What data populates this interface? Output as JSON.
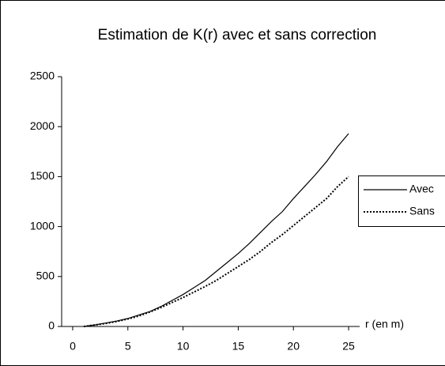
{
  "chart_data": {
    "type": "line",
    "title": "Estimation de K(r) avec et sans correction",
    "x_label": "r (en m)",
    "x": [
      1,
      2,
      3,
      4,
      5,
      6,
      7,
      8,
      9,
      10,
      11,
      12,
      13,
      14,
      15,
      16,
      17,
      18,
      19,
      20,
      21,
      22,
      23,
      24,
      25
    ],
    "series": [
      {
        "name": "Avec",
        "color": "#000000",
        "dash": "solid",
        "values": [
          0,
          15,
          35,
          55,
          80,
          115,
          150,
          200,
          260,
          320,
          390,
          460,
          550,
          640,
          730,
          830,
          940,
          1050,
          1150,
          1280,
          1400,
          1520,
          1650,
          1800,
          1930
        ]
      },
      {
        "name": "Sans",
        "color": "#000000",
        "dash": "dotted",
        "values": [
          0,
          15,
          30,
          50,
          75,
          105,
          145,
          190,
          240,
          290,
          345,
          400,
          460,
          530,
          600,
          670,
          750,
          840,
          920,
          1010,
          1100,
          1190,
          1280,
          1400,
          1500
        ]
      }
    ],
    "xlim": [
      -1,
      26
    ],
    "xticks": [
      0,
      5,
      10,
      15,
      20,
      25
    ],
    "ylim": [
      0,
      2500
    ],
    "yticks": [
      0,
      500,
      1000,
      1500,
      2000,
      2500
    ],
    "grid": false,
    "legend": "right"
  }
}
